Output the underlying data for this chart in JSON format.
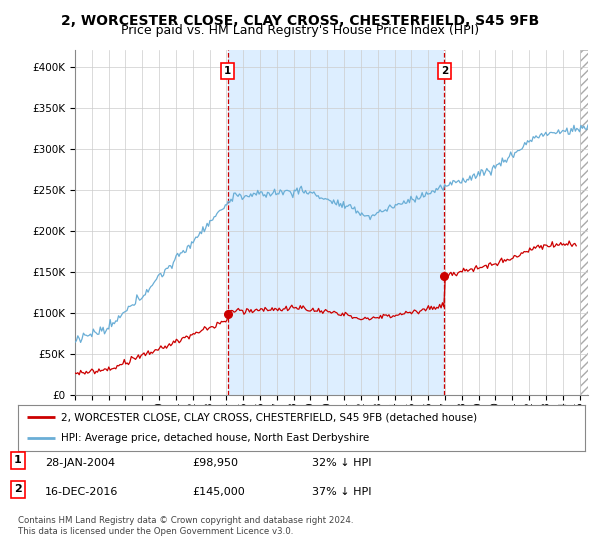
{
  "title": "2, WORCESTER CLOSE, CLAY CROSS, CHESTERFIELD, S45 9FB",
  "subtitle": "Price paid vs. HM Land Registry's House Price Index (HPI)",
  "ylim": [
    0,
    420000
  ],
  "yticks": [
    0,
    50000,
    100000,
    150000,
    200000,
    250000,
    300000,
    350000,
    400000
  ],
  "xlim_start": 1995.0,
  "xlim_end": 2025.5,
  "hpi_color": "#6aaed6",
  "price_color": "#cc0000",
  "bg_color": "#ddeeff",
  "shaded_color": "#ddeeff",
  "grid_color": "#cccccc",
  "marker1_x": 2004.08,
  "marker1_y": 98950,
  "marker2_x": 2016.96,
  "marker2_y": 145000,
  "legend_line1": "2, WORCESTER CLOSE, CLAY CROSS, CHESTERFIELD, S45 9FB (detached house)",
  "legend_line2": "HPI: Average price, detached house, North East Derbyshire",
  "footer": "Contains HM Land Registry data © Crown copyright and database right 2024.\nThis data is licensed under the Open Government Licence v3.0.",
  "title_fontsize": 10,
  "subtitle_fontsize": 9
}
